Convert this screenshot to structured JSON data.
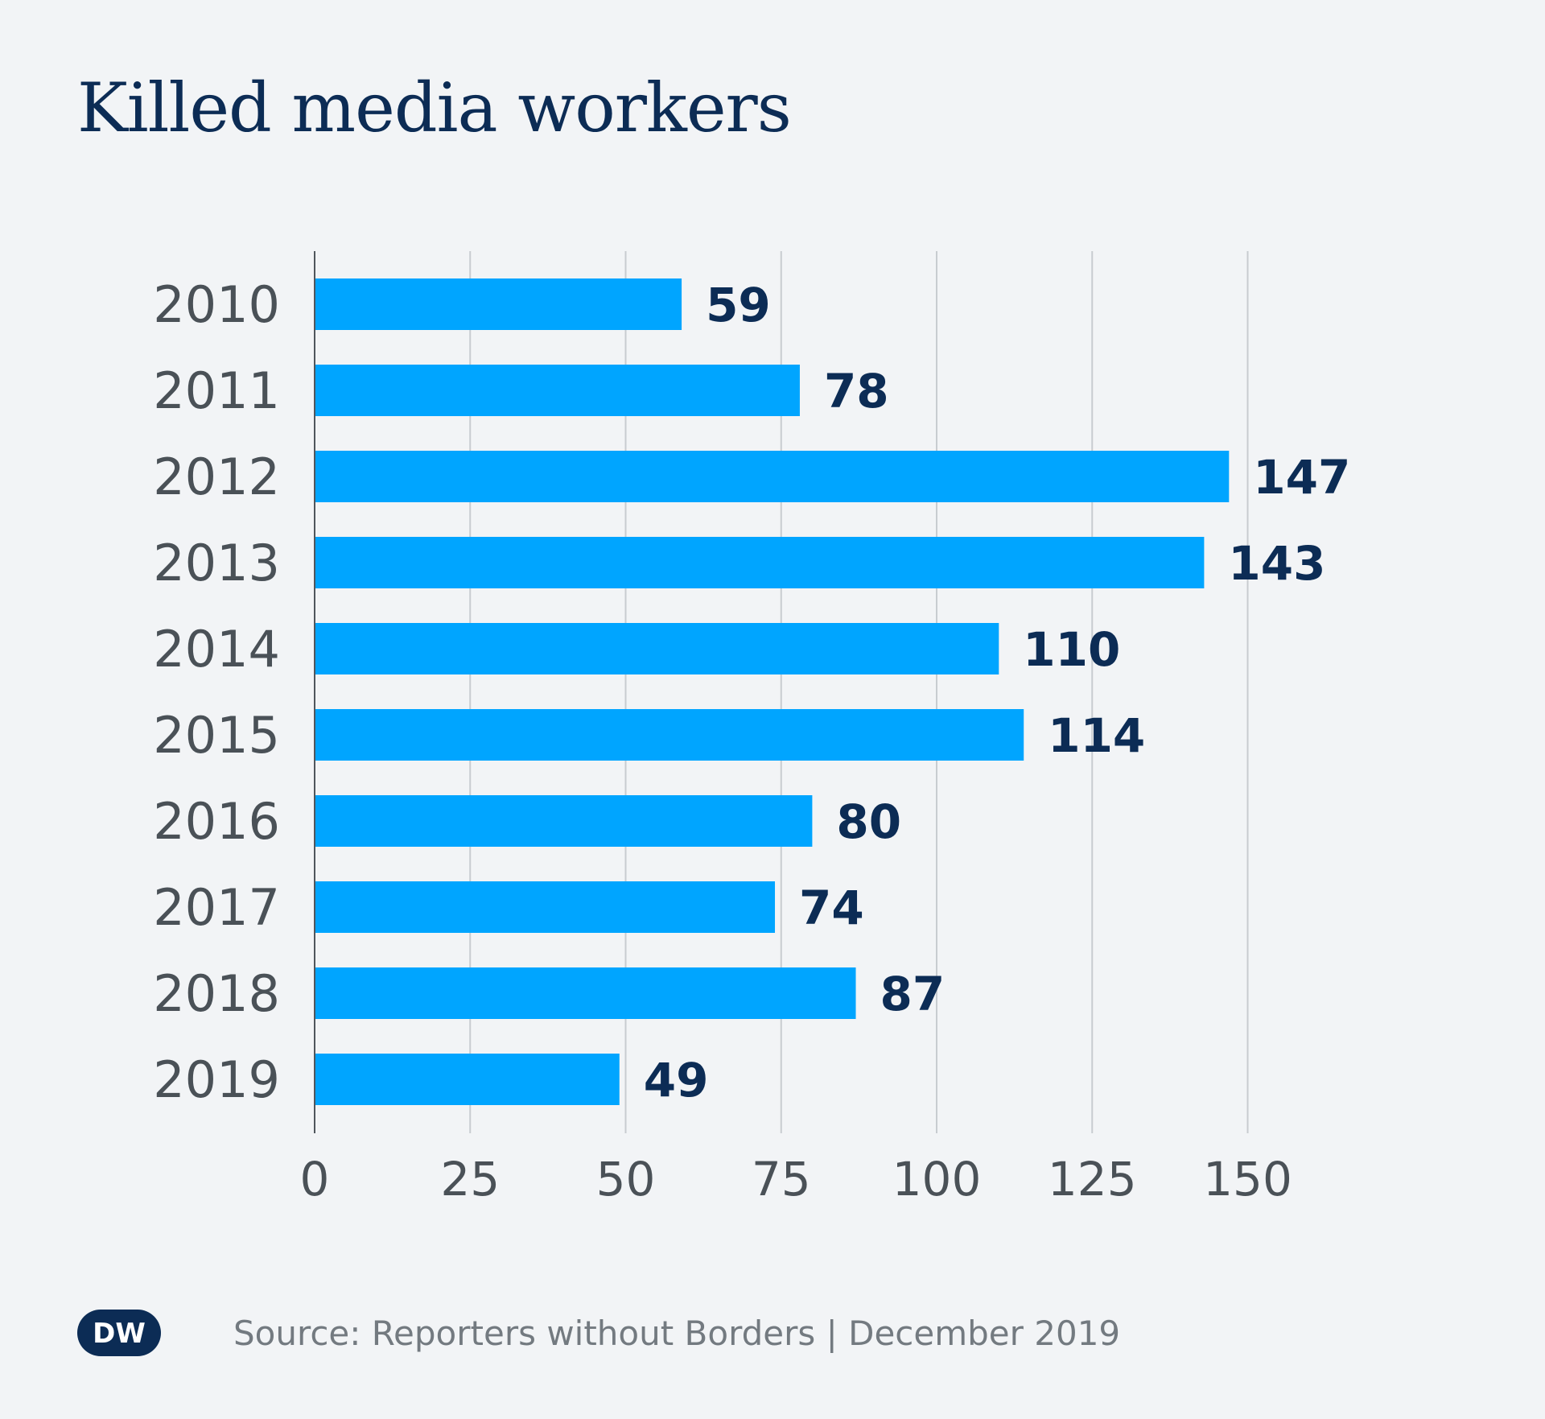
{
  "title": "Killed media workers",
  "logo": {
    "text": "DW",
    "color": "#0c2c55"
  },
  "source": "Source: Reporters without Borders | December 2019",
  "colors": {
    "bar": "#00a5ff",
    "value_label": "#0c2c55",
    "grid": "#c8ccd0",
    "axis": "#50565c",
    "background": "#f2f4f6"
  },
  "chart_data": {
    "type": "bar",
    "orientation": "horizontal",
    "title": "Killed media workers",
    "xlabel": "",
    "ylabel": "",
    "categories": [
      "2010",
      "2011",
      "2012",
      "2013",
      "2014",
      "2015",
      "2016",
      "2017",
      "2018",
      "2019"
    ],
    "values": [
      59,
      78,
      147,
      143,
      110,
      114,
      80,
      74,
      87,
      49
    ],
    "value_labels": [
      "59",
      "78",
      "147",
      "143",
      "110",
      "114",
      "80",
      "74",
      "87",
      "49"
    ],
    "xlim": [
      0,
      150
    ],
    "xticks": [
      0,
      25,
      50,
      75,
      100,
      125,
      150
    ],
    "xtick_labels": [
      "0",
      "25",
      "50",
      "75",
      "100",
      "125",
      "150"
    ],
    "grid": true,
    "legend": "none"
  }
}
